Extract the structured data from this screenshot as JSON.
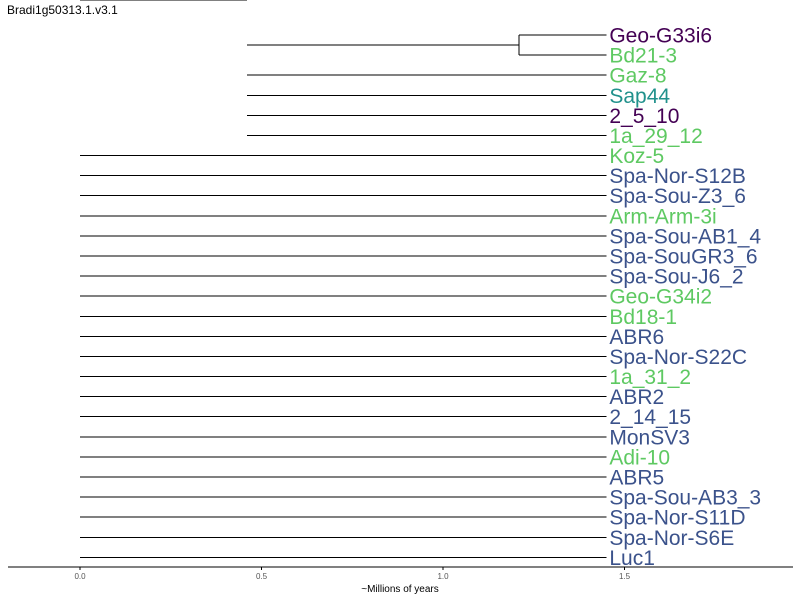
{
  "title": "Bradi1g50313.1.v3.1",
  "xlabel": "~Millions of years",
  "colors": {
    "dark_purple": "#440154",
    "green": "#5ec962",
    "teal": "#21918c",
    "blue": "#3b528b",
    "line": "#000000"
  },
  "axis": {
    "range": [
      -0.2,
      1.93
    ],
    "ticks": [
      0.0,
      0.5,
      1.0,
      1.5
    ],
    "tick_labels": [
      "0.0",
      "0.5",
      "1.0",
      "1.5"
    ]
  },
  "leaves": [
    {
      "label": "Geo-G33i6",
      "color": "dark_purple"
    },
    {
      "label": "Bd21-3",
      "color": "green"
    },
    {
      "label": "Gaz-8",
      "color": "green"
    },
    {
      "label": "Sap44",
      "color": "teal"
    },
    {
      "label": "2_5_10",
      "color": "dark_purple"
    },
    {
      "label": "1a_29_12",
      "color": "green"
    },
    {
      "label": "Koz-5",
      "color": "green"
    },
    {
      "label": "Spa-Nor-S12B",
      "color": "blue"
    },
    {
      "label": "Spa-Sou-Z3_6",
      "color": "blue"
    },
    {
      "label": "Arm-Arm-3i",
      "color": "green"
    },
    {
      "label": "Spa-Sou-AB1_4",
      "color": "blue"
    },
    {
      "label": "Spa-SouGR3_6",
      "color": "blue"
    },
    {
      "label": "Spa-Sou-J6_2",
      "color": "blue"
    },
    {
      "label": "Geo-G34i2",
      "color": "green"
    },
    {
      "label": "Bd18-1",
      "color": "green"
    },
    {
      "label": "ABR6",
      "color": "blue"
    },
    {
      "label": "Spa-Nor-S22C",
      "color": "blue"
    },
    {
      "label": "1a_31_2",
      "color": "green"
    },
    {
      "label": "ABR2",
      "color": "blue"
    },
    {
      "label": "2_14_15",
      "color": "blue"
    },
    {
      "label": "MonSV3",
      "color": "blue"
    },
    {
      "label": "Adi-10",
      "color": "green"
    },
    {
      "label": "ABR5",
      "color": "blue"
    },
    {
      "label": "Spa-Sou-AB3_3",
      "color": "blue"
    },
    {
      "label": "Spa-Nor-S11D",
      "color": "blue"
    },
    {
      "label": "Spa-Nor-S6E",
      "color": "blue"
    },
    {
      "label": "Luc1",
      "color": "blue"
    }
  ],
  "nodes": [
    {
      "name": "root",
      "time": 0.0,
      "children": [
        1,
        2,
        3,
        4,
        5,
        6,
        7,
        8,
        9,
        10,
        11,
        12,
        13,
        14,
        15,
        16,
        17,
        18,
        19,
        20,
        21,
        22,
        23,
        24,
        25,
        26,
        27
      ],
      "leaf_children": [
        6,
        7,
        8,
        9,
        10,
        11,
        12,
        13,
        14,
        15,
        16,
        17,
        18,
        19,
        20,
        21,
        22,
        23,
        24,
        25,
        26
      ],
      "clade_children": [
        "clade_a"
      ]
    },
    {
      "name": "clade_a",
      "time": 0.46,
      "leaf_children": [
        2,
        3,
        4,
        5
      ],
      "clade_children": [
        "clade_b"
      ]
    },
    {
      "name": "clade_b",
      "time": 1.21,
      "leaf_children": [
        0,
        1
      ],
      "clade_children": []
    }
  ],
  "leaf_time": 1.45
}
